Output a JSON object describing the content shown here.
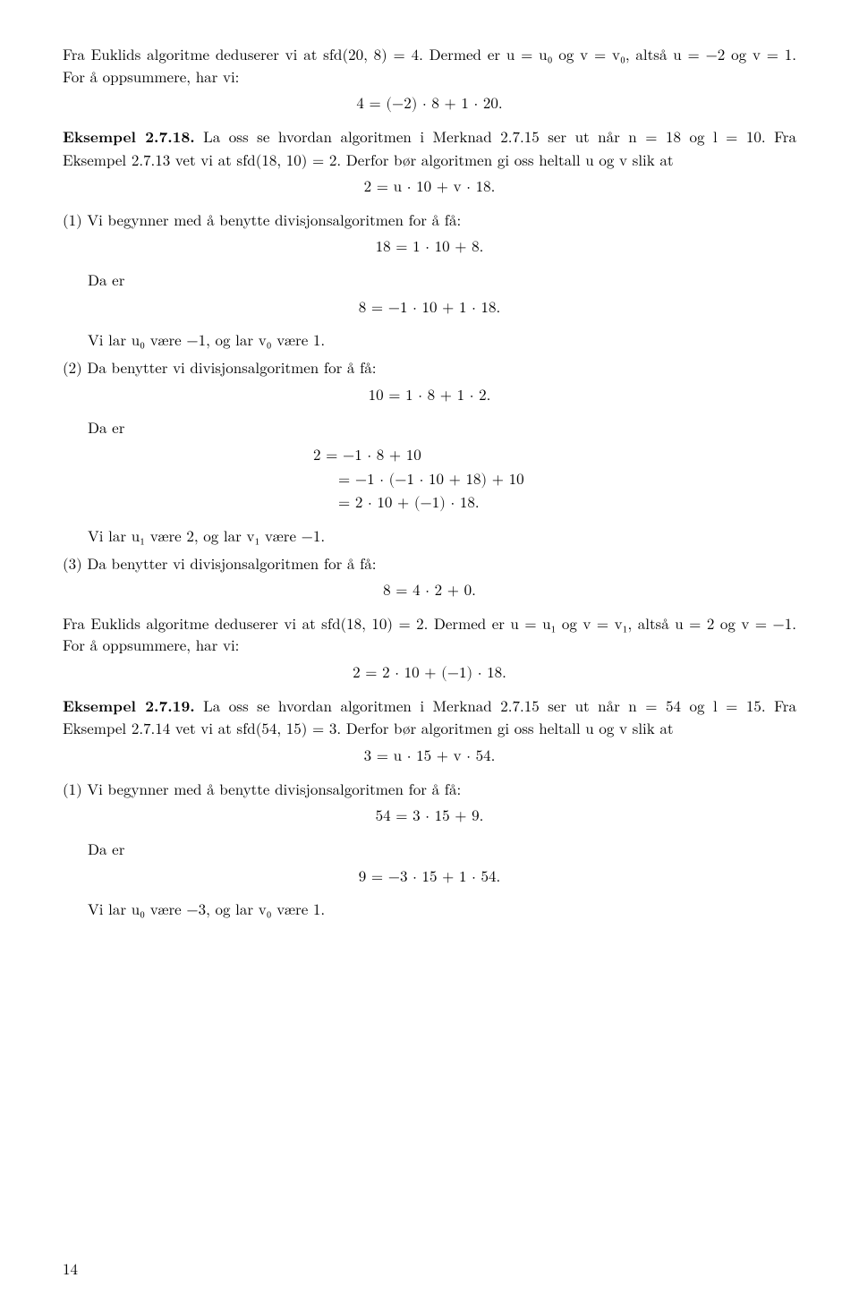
{
  "p1": "Fra Euklids algoritme deduserer vi at sfd(20, 8) = 4. Dermed er u = u₀ og v = v₀, altså u = −2 og v = 1. For å oppsummere, har vi:",
  "eq1": "4 = (−2) · 8 + 1 · 20.",
  "ex2718_head": "Eksempel 2.7.18.",
  "ex2718_body": "La oss se hvordan algoritmen i Merknad 2.7.15 ser ut når n = 18 og l = 10. Fra Eksempel 2.7.13 vet vi at sfd(18, 10) = 2. Derfor bør algoritmen gi oss heltall u og v slik at",
  "eq2": "2 = u · 10 + v · 18.",
  "step1a": "(1) Vi begynner med å benytte divisjonsalgoritmen for å få:",
  "eq3": "18 = 1 · 10 + 8.",
  "daer": "Da er",
  "eq4": "8 = −1 · 10 + 1 · 18.",
  "step1b": "Vi lar u₀ være −1, og lar v₀ være 1.",
  "step2a": "(2) Da benytter vi divisjonsalgoritmen for å få:",
  "eq5": "10 = 1 · 8 + 1 · 2.",
  "eq6a": "2 = −1 · 8 + 10",
  "eq6b": "= −1 · (−1 · 10 + 18) + 10",
  "eq6c": "= 2 · 10 + (−1) · 18.",
  "step2b": "Vi lar u₁ være 2, og lar v₁ være −1.",
  "step3a": "(3) Da benytter vi divisjonsalgoritmen for å få:",
  "eq7": "8 = 4 · 2 + 0.",
  "p2": "Fra Euklids algoritme deduserer vi at sfd(18, 10) = 2. Dermed er u = u₁ og v = v₁, altså u = 2 og v = −1. For å oppsummere, har vi:",
  "eq8": "2 = 2 · 10 + (−1) · 18.",
  "ex2719_head": "Eksempel 2.7.19.",
  "ex2719_body": "La oss se hvordan algoritmen i Merknad 2.7.15 ser ut når n = 54 og l = 15. Fra Eksempel 2.7.14 vet vi at sfd(54, 15) = 3. Derfor bør algoritmen gi oss heltall u og v slik at",
  "eq9": "3 = u · 15 + v · 54.",
  "step1c": "(1) Vi begynner med å benytte divisjonsalgoritmen for å få:",
  "eq10": "54 = 3 · 15 + 9.",
  "eq11": "9 = −3 · 15 + 1 · 54.",
  "step1d": "Vi lar u₀ være −3, og lar v₀ være 1.",
  "page": "14"
}
